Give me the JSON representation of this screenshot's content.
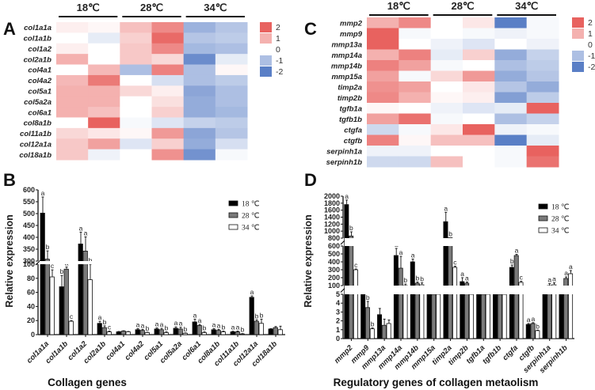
{
  "panels": {
    "A": "A",
    "B": "B",
    "C": "C",
    "D": "D"
  },
  "chart_data": [
    {
      "type": "heatmap",
      "panel": "A",
      "title": "",
      "column_groups": [
        "18℃",
        "28℃",
        "34℃"
      ],
      "columns_per_group": 2,
      "rows": [
        "col1a1a",
        "col1a1b",
        "col1a2",
        "col2a1b",
        "col4a1",
        "col4a2",
        "col5a1",
        "col5a2a",
        "col6a1",
        "col8a1b",
        "col11a1b",
        "col12a1a",
        "col18a1b"
      ],
      "values": [
        [
          0.2,
          0.1,
          0.8,
          1.5,
          -1.2,
          -0.9
        ],
        [
          0.0,
          -0.3,
          0.6,
          1.9,
          -0.9,
          -0.8
        ],
        [
          0.2,
          0.0,
          0.7,
          1.5,
          -1.1,
          -1.0
        ],
        [
          1.0,
          0.0,
          0.7,
          0.5,
          -1.8,
          -0.3
        ],
        [
          0.0,
          0.9,
          -1.0,
          1.6,
          -1.0,
          0.1
        ],
        [
          0.9,
          1.7,
          0.0,
          -0.5,
          -1.0,
          -0.8
        ],
        [
          1.0,
          1.0,
          0.5,
          0.2,
          -1.4,
          -1.0
        ],
        [
          1.0,
          1.0,
          0.0,
          0.4,
          -1.3,
          -1.0
        ],
        [
          1.0,
          0.8,
          0.0,
          0.6,
          -1.3,
          -1.1
        ],
        [
          0.0,
          2.0,
          -0.1,
          -0.4,
          -0.7,
          -0.8
        ],
        [
          0.5,
          0.3,
          0.1,
          1.3,
          -1.4,
          -0.9
        ],
        [
          0.7,
          1.2,
          -0.4,
          0.6,
          -1.3,
          -0.5
        ],
        [
          0.7,
          -0.2,
          0.0,
          1.4,
          -1.7,
          -0.1
        ]
      ],
      "legend": {
        "ticks": [
          "2",
          "1",
          "0",
          "-1",
          "-2"
        ],
        "range": [
          -2,
          2
        ]
      },
      "colors": {
        "high": "#e8625f",
        "mid": "#ffffff",
        "low": "#5a7fc6"
      }
    },
    {
      "type": "heatmap",
      "panel": "C",
      "title": "",
      "column_groups": [
        "18℃",
        "28℃",
        "34℃"
      ],
      "columns_per_group": 2,
      "rows": [
        "mmp2",
        "mmp9",
        "mmp13a",
        "mmp14a",
        "mmp14b",
        "mmp15a",
        "timp2a",
        "timp2b",
        "tgfb1a",
        "tgfb1b",
        "ctgfa",
        "ctgfb",
        "serpinh1a",
        "serpinh1b"
      ],
      "values": [
        [
          1.0,
          1.5,
          0.0,
          0.3,
          -2.0,
          -0.1
        ],
        [
          2.0,
          -0.1,
          0.0,
          -0.1,
          -0.2,
          -0.1
        ],
        [
          2.0,
          0.0,
          -0.2,
          -0.4,
          0.0,
          -0.2
        ],
        [
          1.0,
          1.6,
          -0.3,
          0.6,
          -1.3,
          -0.7
        ],
        [
          1.6,
          1.2,
          -0.1,
          0.0,
          -1.0,
          -0.8
        ],
        [
          1.2,
          -0.1,
          0.5,
          1.3,
          -1.3,
          -0.9
        ],
        [
          1.4,
          1.2,
          0.0,
          0.3,
          -0.9,
          -1.3
        ],
        [
          1.5,
          1.0,
          0.1,
          0.2,
          -1.5,
          -0.8
        ],
        [
          0.1,
          0.0,
          -0.2,
          -0.4,
          -0.3,
          2.0
        ],
        [
          1.2,
          1.8,
          -0.1,
          0.0,
          -1.0,
          -0.7
        ],
        [
          -0.6,
          -0.1,
          0.3,
          2.0,
          -0.2,
          -0.1
        ],
        [
          1.6,
          0.1,
          0.8,
          0.8,
          -2.0,
          -0.3
        ],
        [
          -0.2,
          -0.2,
          0.0,
          0.0,
          -0.1,
          2.0
        ],
        [
          -0.6,
          -0.6,
          0.8,
          0.0,
          -0.1,
          1.8
        ]
      ],
      "legend": {
        "ticks": [
          "2",
          "1",
          "0",
          "-1",
          "-2"
        ],
        "range": [
          -2,
          2
        ]
      },
      "colors": {
        "high": "#e8625f",
        "mid": "#ffffff",
        "low": "#5a7fc6"
      }
    },
    {
      "type": "bar",
      "panel": "B",
      "title": "",
      "xlabel": "Collagen genes",
      "ylabel": "Relative expression",
      "y_axis_break": true,
      "y_segments": [
        {
          "range": [
            0,
            100
          ],
          "ticks": [
            0,
            20,
            40,
            60,
            80,
            100
          ]
        },
        {
          "range": [
            300,
            600
          ],
          "ticks": [
            300,
            350,
            400,
            450,
            500,
            550,
            600
          ]
        }
      ],
      "categories": [
        "col1a1a",
        "col1a1b",
        "col1a2",
        "col2a1b",
        "col4a1",
        "col4a2",
        "col5a1",
        "col5a2a",
        "col6a1",
        "col8a1b",
        "col11a1b",
        "col12a1a",
        "col18a1b"
      ],
      "series": [
        {
          "name": "18 ℃",
          "color": "#000000",
          "values": [
            502,
            68,
            372,
            16,
            4,
            7,
            8,
            9,
            18,
            7,
            4,
            53,
            8
          ],
          "errors": [
            68,
            16,
            50,
            3,
            0.5,
            1.5,
            1.5,
            2,
            4,
            1.5,
            0.8,
            2,
            0.5
          ],
          "letters": [
            "a",
            "b",
            "a",
            "a",
            "",
            "a",
            "a",
            "a",
            "a",
            "a",
            "a",
            "a",
            ""
          ]
        },
        {
          "name": "28 ℃",
          "color": "#7a7a7a",
          "values": [
            308,
            93,
            342,
            10,
            5,
            6,
            7,
            8,
            13,
            6,
            4,
            19,
            10
          ],
          "errors": [
            35,
            3,
            60,
            2.5,
            0.5,
            1.5,
            2,
            2.5,
            1.5,
            1.5,
            1,
            2,
            1.5
          ],
          "letters": [
            "b",
            "a",
            "a",
            "b",
            "",
            "a",
            "a",
            "a",
            "a",
            "a",
            "a",
            "b",
            ""
          ]
        },
        {
          "name": "34 ℃",
          "color": "#ffffff",
          "values": [
            82,
            19,
            78,
            4,
            4,
            3,
            3,
            2,
            3,
            4,
            1,
            16,
            7
          ],
          "errors": [
            10,
            1,
            24,
            1,
            0.5,
            0.5,
            1,
            0.5,
            1,
            1,
            0.5,
            6,
            5
          ],
          "letters": [
            "c",
            "c",
            "b",
            "c",
            "",
            "b",
            "b",
            "b",
            "b",
            "b",
            "b",
            "b",
            ""
          ]
        }
      ],
      "legend": [
        "18 ℃",
        "28 ℃",
        "34 ℃"
      ],
      "legend_position": "top-right"
    },
    {
      "type": "bar",
      "panel": "D",
      "title": "",
      "xlabel": "Regulatory genes of collagen metaolism",
      "ylabel": "Relative expression",
      "y_axis_break": true,
      "y_segments": [
        {
          "range": [
            0,
            5
          ],
          "ticks": [
            0,
            1,
            2,
            3,
            4,
            5
          ]
        },
        {
          "range": [
            100,
            600
          ],
          "ticks": [
            100,
            200,
            300,
            400,
            500,
            600
          ]
        },
        {
          "range": [
            800,
            2000
          ],
          "ticks": [
            800,
            1000,
            1200,
            1400,
            1600,
            1800,
            2000
          ]
        }
      ],
      "categories": [
        "mmp2",
        "mmp9",
        "mmp13a",
        "mmp14a",
        "mmp14b",
        "mmp15a",
        "timp2a",
        "timp2b",
        "tgfb1a",
        "tgfb1b",
        "ctgfa",
        "ctgfb",
        "serpinh1a",
        "serpinh1b"
      ],
      "series": [
        {
          "name": "18 ℃",
          "color": "#000000",
          "values": [
            1760,
            10,
            2.7,
            480,
            400,
            10,
            1270,
            150,
            10,
            60,
            330,
            1.6,
            60,
            20
          ],
          "errors": [
            130,
            0,
            0.7,
            90,
            35,
            0,
            270,
            50,
            0,
            10,
            30,
            0.1,
            5,
            3
          ],
          "letters": [
            "a",
            "a",
            "",
            "a",
            "a",
            "a",
            "a",
            "a",
            "a",
            "a",
            "b",
            "a",
            "b",
            "b"
          ]
        },
        {
          "name": "28 ℃",
          "color": "#7a7a7a",
          "values": [
            860,
            3.5,
            1.5,
            320,
            130,
            10,
            810,
            130,
            10,
            40,
            480,
            1.7,
            100,
            190
          ],
          "errors": [
            120,
            0.7,
            0.7,
            150,
            15,
            0,
            0,
            15,
            0,
            5,
            15,
            0.1,
            25,
            20
          ],
          "letters": [
            "b",
            "b",
            "",
            "a",
            "b",
            "b",
            "b",
            "a",
            "a",
            "b",
            "a",
            "a",
            "a",
            "a"
          ]
        },
        {
          "name": "34 ℃",
          "color": "#ffffff",
          "values": [
            300,
            1.1,
            1.7,
            100,
            110,
            10,
            330,
            50,
            5,
            10,
            140,
            0.9,
            110,
            250
          ],
          "errors": [
            10,
            0.1,
            0.4,
            20,
            25,
            0,
            15,
            10,
            0,
            3,
            15,
            0.05,
            25,
            40
          ],
          "letters": [
            "c",
            "b",
            "",
            "b",
            "b",
            "ab",
            "c",
            "b",
            "b",
            "c",
            "c",
            "b",
            "a",
            "a"
          ]
        }
      ],
      "legend": [
        "18 ℃",
        "28 ℃",
        "34 ℃"
      ],
      "legend_position": "top-right"
    }
  ]
}
